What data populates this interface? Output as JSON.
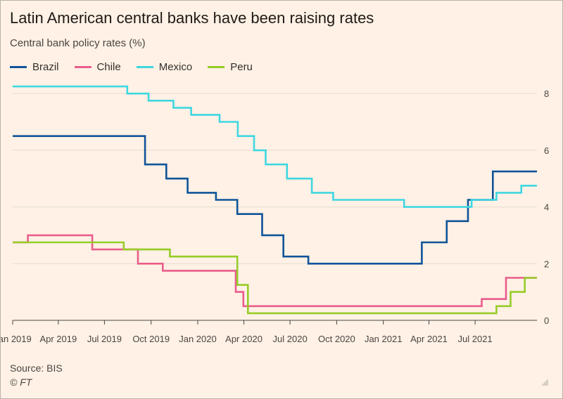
{
  "title": "Latin American central banks have been raising rates",
  "subtitle": "Central bank policy rates (%)",
  "source": "Source: BIS",
  "credit": "© FT",
  "chart_data": {
    "type": "line",
    "title": "Latin American central banks have been raising rates",
    "subtitle": "Central bank policy rates (%)",
    "xlabel": "",
    "ylabel": "Central bank policy rates (%)",
    "step": true,
    "grid": true,
    "legend_position": "top-left",
    "y_axis_side": "right",
    "xlim": [
      "2019-01-01",
      "2021-10-31"
    ],
    "ylim": [
      0,
      8
    ],
    "x_ticks": [
      "2019-01-01",
      "2019-04-01",
      "2019-07-01",
      "2019-10-01",
      "2020-01-01",
      "2020-04-01",
      "2020-07-01",
      "2020-10-01",
      "2021-01-01",
      "2021-04-01",
      "2021-07-01"
    ],
    "x_tick_labels": [
      "Jan 2019",
      "Apr 2019",
      "Jul 2019",
      "Oct 2019",
      "Jan 2020",
      "Apr 2020",
      "Jul 2020",
      "Oct 2020",
      "Jan 2021",
      "Apr 2021",
      "Jul 2021"
    ],
    "y_ticks": [
      0,
      2,
      4,
      6,
      8
    ],
    "y_tick_labels": [
      "0",
      "2",
      "4",
      "6",
      "8"
    ],
    "series": [
      {
        "name": "Brazil",
        "color": "#0f5499",
        "x": [
          "2019-01-01",
          "2019-08-01",
          "2019-09-19",
          "2019-10-31",
          "2019-12-12",
          "2020-02-06",
          "2020-03-19",
          "2020-05-07",
          "2020-06-18",
          "2020-08-06",
          "2021-03-18",
          "2021-05-06",
          "2021-06-17",
          "2021-08-05",
          "2021-09-23",
          "2021-10-31"
        ],
        "y": [
          6.5,
          6.5,
          5.5,
          5.0,
          4.5,
          4.25,
          3.75,
          3.0,
          2.25,
          2.0,
          2.75,
          3.5,
          4.25,
          5.25,
          5.25,
          5.25
        ]
      },
      {
        "name": "Chile",
        "color": "#e95d8c",
        "x": [
          "2019-01-01",
          "2019-01-31",
          "2019-06-07",
          "2019-09-05",
          "2019-10-24",
          "2020-03-16",
          "2020-03-31",
          "2021-07-14",
          "2021-08-31",
          "2021-10-13",
          "2021-10-31"
        ],
        "y": [
          2.75,
          3.0,
          2.5,
          2.0,
          1.75,
          1.0,
          0.5,
          0.75,
          1.5,
          1.5,
          1.5
        ]
      },
      {
        "name": "Mexico",
        "color": "#3fd7e1",
        "x": [
          "2019-01-01",
          "2019-08-15",
          "2019-09-26",
          "2019-11-14",
          "2019-12-19",
          "2020-02-13",
          "2020-03-20",
          "2020-04-21",
          "2020-05-14",
          "2020-06-25",
          "2020-08-13",
          "2020-09-24",
          "2021-02-11",
          "2021-06-24",
          "2021-08-12",
          "2021-09-30",
          "2021-10-31"
        ],
        "y": [
          8.25,
          8.0,
          7.75,
          7.5,
          7.25,
          7.0,
          6.5,
          6.0,
          5.5,
          5.0,
          4.5,
          4.25,
          4.0,
          4.25,
          4.5,
          4.75,
          4.75
        ]
      },
      {
        "name": "Peru",
        "color": "#96cc28",
        "x": [
          "2019-01-01",
          "2019-08-08",
          "2019-11-07",
          "2020-03-19",
          "2020-04-09",
          "2021-08-12",
          "2021-09-09",
          "2021-10-07",
          "2021-10-31"
        ],
        "y": [
          2.75,
          2.5,
          2.25,
          1.25,
          0.25,
          0.5,
          1.0,
          1.5,
          1.5
        ]
      }
    ]
  }
}
